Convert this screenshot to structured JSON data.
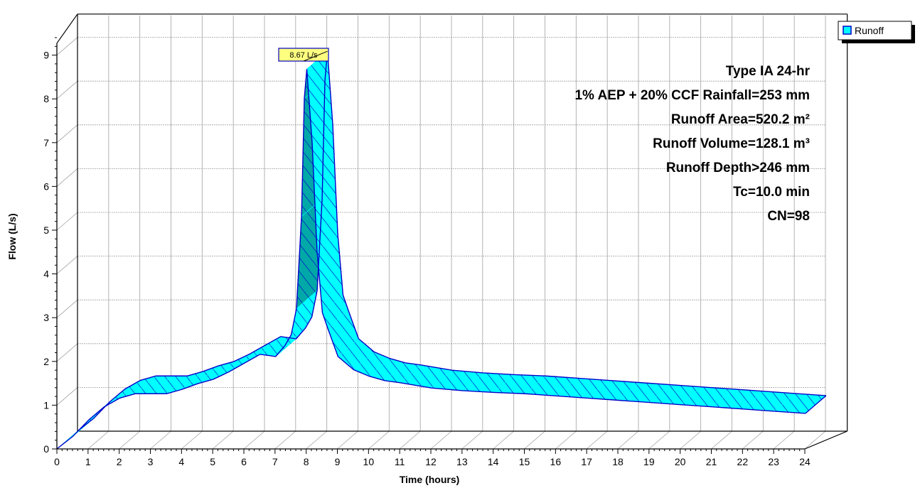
{
  "colors": {
    "fill_front": "#00ffff",
    "fill_back": "#00a8a8",
    "hatch": "#0000c8",
    "grid": "#a0a0a0",
    "peak_label_bg": "#ffff80"
  },
  "chart_data": {
    "type": "area",
    "title": "",
    "xlabel": "Time  (hours)",
    "ylabel": "Flow  (L/s)",
    "xlim": [
      0,
      24
    ],
    "ylim": [
      0,
      9.5
    ],
    "x_ticks": [
      "0",
      "1",
      "2",
      "3",
      "4",
      "5",
      "6",
      "7",
      "8",
      "9",
      "10",
      "11",
      "12",
      "13",
      "14",
      "15",
      "16",
      "17",
      "18",
      "19",
      "20",
      "21",
      "22",
      "23",
      "24"
    ],
    "y_ticks": [
      "0",
      "1",
      "2",
      "3",
      "4",
      "5",
      "6",
      "7",
      "8",
      "9"
    ],
    "grid": true,
    "legend": {
      "position": "top-right",
      "entries": [
        "Runoff"
      ]
    },
    "peak_label": "8.67 L/s",
    "annotations": [
      "Type IA 24-hr",
      "1% AEP + 20% CCF Rainfall=253 mm",
      "Runoff Area=520.2 m²",
      "Runoff Volume=128.1 m³",
      "Runoff Depth>246 mm",
      "Tc=10.0 min",
      "CN=98"
    ],
    "series": [
      {
        "name": "Runoff",
        "x": [
          0,
          0.5,
          1,
          1.5,
          2,
          2.5,
          3,
          3.5,
          4,
          4.5,
          5,
          5.5,
          6,
          6.5,
          7,
          7.3,
          7.5,
          7.67,
          7.83,
          7.92,
          8.0,
          8.17,
          8.33,
          8.5,
          8.67,
          9,
          9.5,
          10,
          10.5,
          11,
          12,
          13,
          14,
          15,
          16,
          17,
          18,
          19,
          20,
          21,
          22,
          23,
          24
        ],
        "values": [
          0,
          0.28,
          0.65,
          0.95,
          1.15,
          1.25,
          1.25,
          1.25,
          1.35,
          1.48,
          1.58,
          1.75,
          1.95,
          2.15,
          2.1,
          2.35,
          2.6,
          3.2,
          5.3,
          8.0,
          8.67,
          7.0,
          4.5,
          3.1,
          2.75,
          2.1,
          1.8,
          1.65,
          1.55,
          1.5,
          1.38,
          1.32,
          1.28,
          1.25,
          1.2,
          1.15,
          1.1,
          1.05,
          1.0,
          0.95,
          0.9,
          0.85,
          0.8
        ]
      }
    ]
  }
}
